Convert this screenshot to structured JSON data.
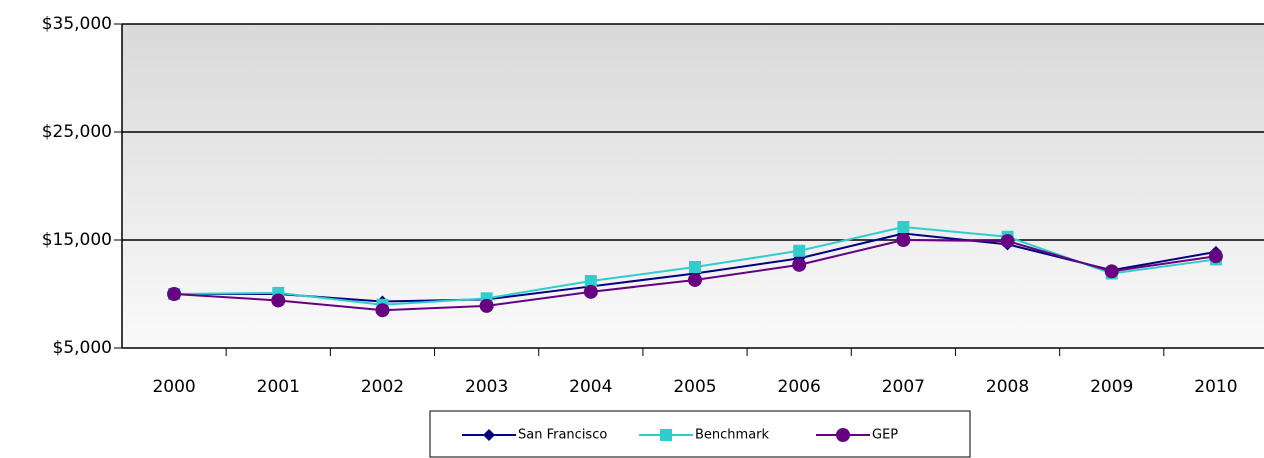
{
  "chart_data": {
    "type": "line",
    "categories": [
      "2000",
      "2001",
      "2002",
      "2003",
      "2004",
      "2005",
      "2006",
      "2007",
      "2008",
      "2009",
      "2010"
    ],
    "series": [
      {
        "name": "San Francisco",
        "color": "#000080",
        "marker": "diamond",
        "values": [
          10000,
          10000,
          9300,
          9500,
          10700,
          11900,
          13300,
          15600,
          14600,
          12200,
          13900
        ]
      },
      {
        "name": "Benchmark",
        "color": "#33cccc",
        "marker": "square",
        "values": [
          10000,
          10100,
          9000,
          9600,
          11200,
          12500,
          14000,
          16200,
          15300,
          11900,
          13200
        ]
      },
      {
        "name": "GEP",
        "color": "#660080",
        "marker": "circle",
        "values": [
          10000,
          9400,
          8500,
          8900,
          10200,
          11300,
          12700,
          15000,
          14900,
          12100,
          13500
        ]
      }
    ],
    "ylim": [
      5000,
      35000
    ],
    "yticks": [
      {
        "value": 5000,
        "label": "$5,000"
      },
      {
        "value": 15000,
        "label": "$15,000"
      },
      {
        "value": 25000,
        "label": "$25,000"
      },
      {
        "value": 35000,
        "label": "$35,000"
      }
    ],
    "grid": true,
    "legend": "bottom"
  }
}
